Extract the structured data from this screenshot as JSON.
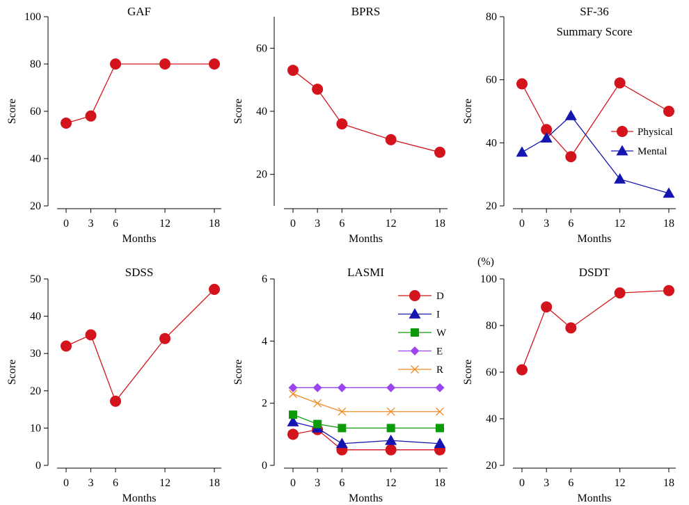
{
  "chart_data": [
    {
      "id": "gaf",
      "type": "line",
      "title": "GAF",
      "subtitle": "",
      "xlabel": "Months",
      "ylabel": "Score",
      "unit_label": "",
      "ylim": [
        20,
        100
      ],
      "yticks": [
        20,
        40,
        60,
        80,
        100
      ],
      "x": [
        0,
        3,
        6,
        12,
        18
      ],
      "series": [
        {
          "name": "",
          "color": "#d4141c",
          "marker": "circle",
          "values": [
            55,
            58,
            80,
            80,
            80
          ]
        }
      ],
      "legend": null
    },
    {
      "id": "bprs",
      "type": "line",
      "title": "BPRS",
      "subtitle": "",
      "xlabel": "Months",
      "ylabel": "Score",
      "unit_label": "",
      "ylim": [
        10,
        70
      ],
      "yticks": [
        20,
        40,
        60
      ],
      "x": [
        0,
        3,
        6,
        12,
        18
      ],
      "series": [
        {
          "name": "",
          "color": "#d4141c",
          "marker": "circle",
          "values": [
            53,
            47,
            36,
            31,
            27
          ]
        }
      ],
      "legend": null
    },
    {
      "id": "sf36",
      "type": "line",
      "title": "SF-36",
      "subtitle": "Summary Score",
      "xlabel": "Months",
      "ylabel": "Score",
      "unit_label": "",
      "ylim": [
        20,
        80
      ],
      "yticks": [
        20,
        40,
        60,
        80
      ],
      "x": [
        0,
        3,
        6,
        12,
        18
      ],
      "series": [
        {
          "name": "Physical",
          "color": "#d4141c",
          "marker": "circle",
          "values": [
            58.7,
            44.2,
            35.6,
            59,
            50
          ]
        },
        {
          "name": "Mental",
          "color": "#1515b0",
          "marker": "triangle",
          "values": [
            37,
            41.5,
            48.6,
            28.5,
            24
          ]
        }
      ],
      "legend": "middle-right"
    },
    {
      "id": "sdss",
      "type": "line",
      "title": "SDSS",
      "subtitle": "",
      "xlabel": "Months",
      "ylabel": "Score",
      "unit_label": "",
      "ylim": [
        0,
        50
      ],
      "yticks": [
        0,
        10,
        20,
        30,
        40,
        50
      ],
      "x": [
        0,
        3,
        6,
        12,
        18
      ],
      "series": [
        {
          "name": "",
          "color": "#d4141c",
          "marker": "circle",
          "values": [
            32,
            35,
            17.2,
            34,
            47.2
          ]
        }
      ],
      "legend": null
    },
    {
      "id": "lasmi",
      "type": "line",
      "title": "LASMI",
      "subtitle": "",
      "xlabel": "Months",
      "ylabel": "Score",
      "unit_label": "",
      "ylim": [
        0,
        6
      ],
      "yticks": [
        0,
        2,
        4,
        6
      ],
      "x": [
        0,
        3,
        6,
        12,
        18
      ],
      "series": [
        {
          "name": "D",
          "color": "#d4141c",
          "marker": "circle",
          "values": [
            1.0,
            1.15,
            0.5,
            0.5,
            0.5
          ]
        },
        {
          "name": "I",
          "color": "#1515b0",
          "marker": "triangle",
          "values": [
            1.4,
            1.2,
            0.7,
            0.8,
            0.7
          ]
        },
        {
          "name": "W",
          "color": "#0a9a0a",
          "marker": "square",
          "values": [
            1.63,
            1.33,
            1.2,
            1.2,
            1.2
          ]
        },
        {
          "name": "E",
          "color": "#9b45f0",
          "marker": "diamond",
          "values": [
            2.5,
            2.5,
            2.5,
            2.5,
            2.5
          ]
        },
        {
          "name": "R",
          "color": "#f08a24",
          "marker": "x",
          "values": [
            2.3,
            2.0,
            1.73,
            1.73,
            1.73
          ]
        }
      ],
      "legend": "top-right"
    },
    {
      "id": "dsdt",
      "type": "line",
      "title": "DSDT",
      "subtitle": "",
      "xlabel": "Months",
      "ylabel": "Score",
      "unit_label": "(%)",
      "ylim": [
        20,
        100
      ],
      "yticks": [
        20,
        40,
        60,
        80,
        100
      ],
      "x": [
        0,
        3,
        6,
        12,
        18
      ],
      "series": [
        {
          "name": "",
          "color": "#d4141c",
          "marker": "circle",
          "values": [
            61,
            88,
            79,
            94,
            95
          ]
        }
      ],
      "legend": null
    }
  ]
}
